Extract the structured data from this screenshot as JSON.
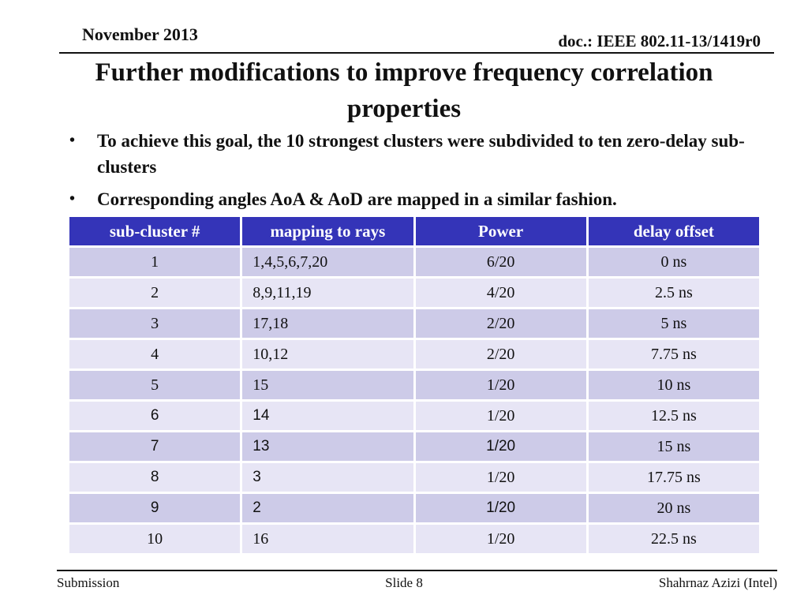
{
  "header": {
    "date": "November 2013",
    "doc_id": "doc.: IEEE 802.11-13/1419r0"
  },
  "title": "Further modifications to improve frequency correlation properties",
  "bullets": [
    {
      "marker": "•",
      "text": "To achieve this goal, the 10 strongest clusters were subdivided to ten zero-delay sub-clusters"
    },
    {
      "marker": "•",
      "text": "Corresponding angles AoA & AoD are mapped in a similar fashion."
    }
  ],
  "table": {
    "columns": [
      "sub-cluster #",
      "mapping to rays",
      "Power",
      "delay offset"
    ],
    "rows": [
      [
        "1",
        "1,4,5,6,7,20",
        "6/20",
        "0 ns"
      ],
      [
        "2",
        "8,9,11,19",
        "4/20",
        "2.5 ns"
      ],
      [
        "3",
        "17,18",
        "2/20",
        "5 ns"
      ],
      [
        "4",
        "10,12",
        "2/20",
        "7.75 ns"
      ],
      [
        "5",
        "15",
        "1/20",
        "10 ns"
      ],
      [
        "6",
        "14",
        "1/20",
        "12.5 ns"
      ],
      [
        "7",
        "13",
        "1/20",
        "15 ns"
      ],
      [
        "8",
        "3",
        "1/20",
        "17.75 ns"
      ],
      [
        "9",
        "2",
        "1/20",
        "20 ns"
      ],
      [
        "10",
        "16",
        "1/20",
        "22.5 ns"
      ]
    ]
  },
  "footer": {
    "left": "Submission",
    "center": "Slide 8",
    "right": "Shahrnaz Azizi (Intel)"
  },
  "colors": {
    "table_header_bg": "#3434b8",
    "row_dark": "#cdcbe8",
    "row_light": "#e7e5f5"
  }
}
